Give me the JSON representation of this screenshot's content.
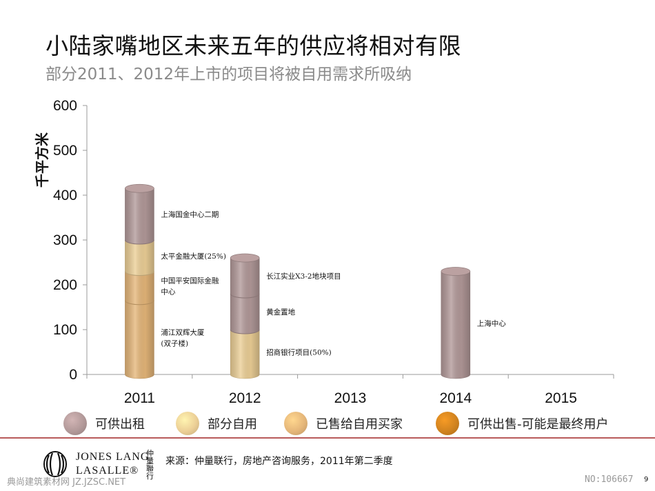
{
  "header": {
    "title": "小陆家嘴地区未来五年的供应将相对有限",
    "subtitle": "部分2011、2012年上市的项目将被自用需求所吸纳"
  },
  "chart_data": {
    "type": "bar",
    "stacked": true,
    "ylabel": "千平方米",
    "ylim": [
      0,
      600
    ],
    "yticks": [
      0,
      100,
      200,
      300,
      400,
      500,
      600
    ],
    "categories": [
      "2011",
      "2012",
      "2013",
      "2014",
      "2015"
    ],
    "series": [
      {
        "name": "可供出租",
        "color": "#b29999"
      },
      {
        "name": "部分自用",
        "color": "#eccf96"
      },
      {
        "name": "已售给自用买家",
        "color": "#e5b679"
      },
      {
        "name": "可供出售-可能是最终用户",
        "color": "#d1831f"
      }
    ],
    "bars": [
      {
        "category": "2011",
        "segments": [
          {
            "series": "已售给自用买家",
            "value": 165,
            "label": "浦江双辉大厦\n(双子楼)"
          },
          {
            "series": "已售给自用买家",
            "value": 65,
            "label": "中国平安国际金融\n中心"
          },
          {
            "series": "部分自用",
            "value": 70,
            "label": "太平金融大厦(25%)"
          },
          {
            "series": "可供出租",
            "value": 115,
            "label": "上海国金中心二期"
          }
        ]
      },
      {
        "category": "2012",
        "segments": [
          {
            "series": "部分自用",
            "value": 100,
            "label": "招商银行项目(50%)"
          },
          {
            "series": "可供出租",
            "value": 80,
            "label": "黄金置地"
          },
          {
            "series": "可供出租",
            "value": 80,
            "label": "长江实业X3-2地块项目"
          }
        ]
      },
      {
        "category": "2013",
        "segments": []
      },
      {
        "category": "2014",
        "segments": [
          {
            "series": "可供出租",
            "value": 230,
            "label": "上海中心"
          }
        ]
      },
      {
        "category": "2015",
        "segments": []
      }
    ]
  },
  "legend": [
    {
      "label": "可供出租",
      "color": "#b29999"
    },
    {
      "label": "部分自用",
      "color": "#eccf96"
    },
    {
      "label": "已售给自用买家",
      "color": "#e5b679"
    },
    {
      "label": "可供出售-可能是最终用户",
      "color": "#d1831f"
    }
  ],
  "footer": {
    "logo_line1": "JONES LANG",
    "logo_line2": "LASALLE®",
    "logo_cn": "仲量聯行",
    "source": "来源：仲量联行，房地产咨询服务，2011年第二季度",
    "watermark_left": "典尚建筑素材网 JZ.JZSC.NET",
    "watermark_right": "NO:106667",
    "page_number": "9"
  }
}
